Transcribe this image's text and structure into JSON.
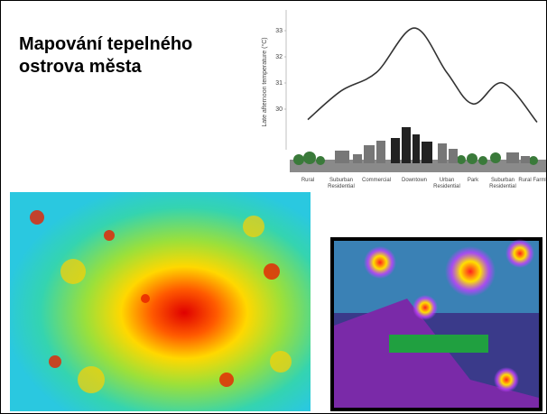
{
  "title": "Mapování tepelného ostrova města",
  "chart_data": {
    "type": "line",
    "y_label": "Late afternoon temperature (°C)",
    "categories": [
      "Rural",
      "Suburban Residential",
      "Commercial",
      "Downtown",
      "Urban Residential",
      "Park",
      "Suburban Residential",
      "Rural Farmland"
    ],
    "values": [
      29.6,
      30.7,
      31.4,
      33.1,
      31.4,
      30.2,
      31.0,
      29.5
    ],
    "color": "#333333",
    "ylim": [
      28.5,
      33.5
    ],
    "yticks": [
      30,
      31,
      32,
      33
    ]
  }
}
